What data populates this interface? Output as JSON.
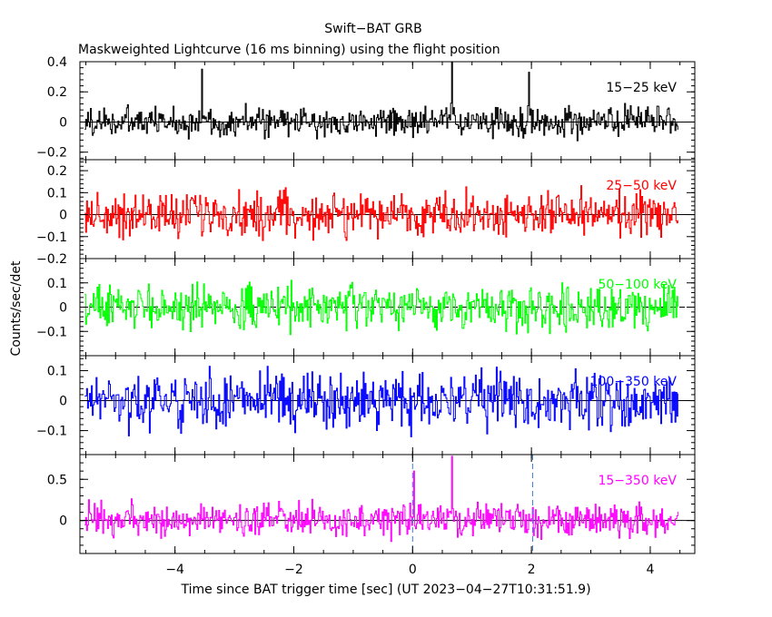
{
  "title": "Swift−BAT GRB",
  "subtitle": "Maskweighted Lightcurve (16 ms binning) using the flight position",
  "ylabel": "Counts/sec/det",
  "xlabel": "Time since BAT trigger time [sec] (UT 2023−04−27T10:31:51.9)",
  "chart_data": {
    "type": "line",
    "xlim": [
      -5.6,
      4.75
    ],
    "x_ticks": [
      -4,
      -2,
      0,
      2,
      4
    ],
    "x_tick_labels": [
      "−4",
      "−2",
      "0",
      "2",
      "4"
    ],
    "bin_size_sec": 0.016,
    "data_range": [
      -5.52,
      4.48
    ],
    "markers": [
      0,
      2.02
    ],
    "panels": [
      {
        "label": "15−25 keV",
        "color": "#000000",
        "ylim": [
          -0.25,
          0.4
        ],
        "y_ticks": [
          -0.2,
          0,
          0.2,
          0.4
        ],
        "y_tick_labels": [
          "−0.2",
          "0",
          "0.2",
          "0.4"
        ],
        "zero_line_dashed": false,
        "noise_amplitude": 0.085,
        "spikes": [
          [
            0.65,
            0.4
          ],
          [
            1.95,
            0.33
          ],
          [
            -3.55,
            0.35
          ]
        ]
      },
      {
        "label": "25−50 keV",
        "color": "#ff0000",
        "ylim": [
          -0.2,
          0.25
        ],
        "y_ticks": [
          -0.2,
          -0.1,
          0,
          0.1,
          0.2
        ],
        "y_tick_labels": [
          "−0.2",
          "−0.1",
          "0",
          "0.1",
          "0.2"
        ],
        "zero_line_dashed": false,
        "noise_amplitude": 0.085,
        "spikes": []
      },
      {
        "label": "50−100 keV",
        "color": "#00ff00",
        "ylim": [
          -0.2,
          0.2
        ],
        "y_ticks": [
          -0.1,
          0,
          0.1
        ],
        "y_tick_labels": [
          "−0.1",
          "0",
          "0.1"
        ],
        "zero_line_dashed": true,
        "noise_amplitude": 0.075,
        "spikes": []
      },
      {
        "label": "100−350 keV",
        "color": "#0000ff",
        "ylim": [
          -0.18,
          0.15
        ],
        "y_ticks": [
          -0.1,
          0,
          0.1
        ],
        "y_tick_labels": [
          "−0.1",
          "0",
          "0.1"
        ],
        "zero_line_dashed": false,
        "noise_amplitude": 0.075,
        "spikes": []
      },
      {
        "label": "15−350 keV",
        "color": "#ff00ff",
        "ylim": [
          -0.4,
          0.8
        ],
        "y_ticks": [
          0,
          0.5
        ],
        "y_tick_labels": [
          "0",
          "0.5"
        ],
        "zero_line_dashed": false,
        "noise_amplitude": 0.17,
        "spikes": [
          [
            0.65,
            0.78
          ],
          [
            0.02,
            0.6
          ]
        ]
      }
    ]
  }
}
